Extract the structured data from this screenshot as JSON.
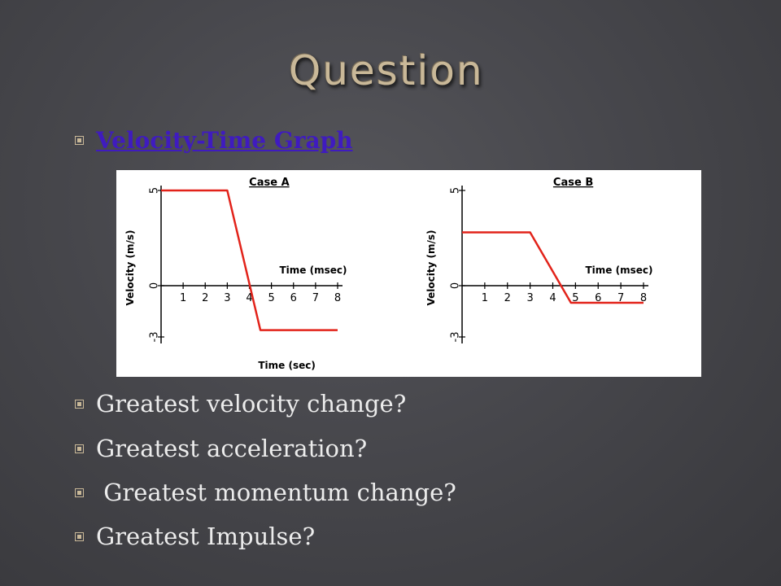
{
  "slide": {
    "title": "Question",
    "link_label": "Velocity-Time Graph",
    "questions": [
      "Greatest velocity change?",
      "Greatest acceleration?",
      " Greatest momentum change?",
      "Greatest Impulse?"
    ]
  },
  "colors": {
    "line": "#e2231a",
    "title": "#c9b898",
    "link": "#3f1bbf"
  },
  "chart_data": [
    {
      "type": "line",
      "title": "Case A",
      "ylabel": "Velocity (m/s)",
      "xlabel_axis": "Time (msec)",
      "xlabel_bottom": "Time (sec)",
      "x_ticks": [
        "1",
        "2",
        "3",
        "4",
        "5",
        "6",
        "7",
        "8"
      ],
      "y_ticks": [
        "5",
        "0",
        "-3"
      ],
      "xlim": [
        0,
        8
      ],
      "ylim": [
        -3,
        5
      ],
      "series": [
        {
          "x": [
            0,
            3,
            4.5,
            8
          ],
          "y": [
            5,
            5,
            -2.6,
            -2.6
          ]
        }
      ]
    },
    {
      "type": "line",
      "title": "Case B",
      "ylabel": "Velocity (m/s)",
      "xlabel_axis": "Time (msec)",
      "xlabel_bottom": "",
      "x_ticks": [
        "1",
        "2",
        "3",
        "4",
        "5",
        "6",
        "7",
        "8"
      ],
      "y_ticks": [
        "5",
        "0",
        "-3"
      ],
      "xlim": [
        0,
        8
      ],
      "ylim": [
        -3,
        5
      ],
      "series": [
        {
          "x": [
            0,
            3,
            4.8,
            8
          ],
          "y": [
            2.8,
            2.8,
            -1,
            -1
          ]
        }
      ]
    }
  ]
}
